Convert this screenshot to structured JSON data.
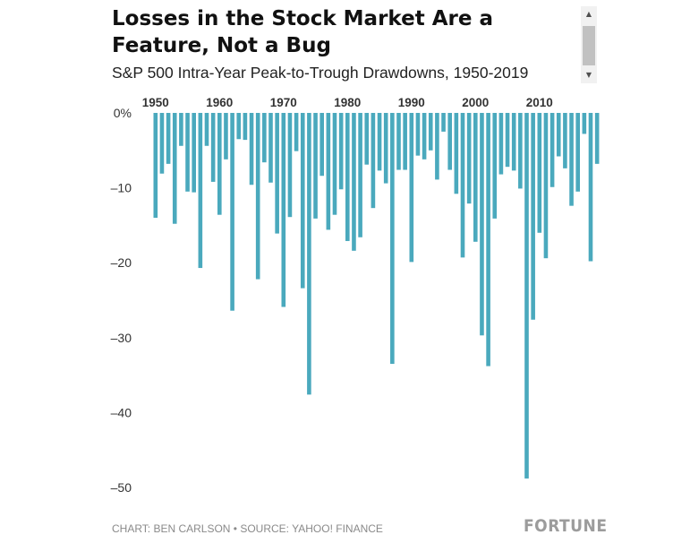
{
  "header": {
    "title": "Losses in the Stock Market Are a Feature, Not a Bug",
    "subtitle": "S&P 500 Intra-Year Peak-to-Trough Drawdowns, 1950-2019"
  },
  "footer": {
    "source": "CHART: BEN CARLSON • SOURCE: YAHOO! FINANCE",
    "logo": "FORTUNE"
  },
  "scrollbar": {
    "up_arrow": "▲",
    "down_arrow": "▼"
  },
  "colors": {
    "bar": "#4aa9bd",
    "axis_text": "#333333",
    "footer_text": "#8a8a8a"
  },
  "chart_data": {
    "type": "bar",
    "title": "S&P 500 Intra-Year Peak-to-Trough Drawdowns, 1950-2019",
    "xlabel": "",
    "ylabel": "",
    "x_tick_labels": [
      "1950",
      "1960",
      "1970",
      "1980",
      "1990",
      "2000",
      "2010"
    ],
    "x_tick_years": [
      1950,
      1960,
      1970,
      1980,
      1990,
      2000,
      2010
    ],
    "y_ticks": [
      0,
      -10,
      -20,
      -30,
      -40,
      -50
    ],
    "y_tick_labels": [
      "0%",
      "–10",
      "–20",
      "–30",
      "–40",
      "–50"
    ],
    "ylim": [
      -50,
      0
    ],
    "grid": false,
    "categories": [
      1950,
      1951,
      1952,
      1953,
      1954,
      1955,
      1956,
      1957,
      1958,
      1959,
      1960,
      1961,
      1962,
      1963,
      1964,
      1965,
      1966,
      1967,
      1968,
      1969,
      1970,
      1971,
      1972,
      1973,
      1974,
      1975,
      1976,
      1977,
      1978,
      1979,
      1980,
      1981,
      1982,
      1983,
      1984,
      1985,
      1986,
      1987,
      1988,
      1989,
      1990,
      1991,
      1992,
      1993,
      1994,
      1995,
      1996,
      1997,
      1998,
      1999,
      2000,
      2001,
      2002,
      2003,
      2004,
      2005,
      2006,
      2007,
      2008,
      2009,
      2010,
      2011,
      2012,
      2013,
      2014,
      2015,
      2016,
      2017,
      2018,
      2019
    ],
    "values": [
      -14.0,
      -8.1,
      -6.8,
      -14.8,
      -4.4,
      -10.5,
      -10.6,
      -20.7,
      -4.4,
      -9.2,
      -13.6,
      -6.2,
      -26.4,
      -3.5,
      -3.6,
      -9.6,
      -22.2,
      -6.6,
      -9.3,
      -16.1,
      -25.9,
      -13.9,
      -5.1,
      -23.4,
      -37.6,
      -14.1,
      -8.4,
      -15.6,
      -13.6,
      -10.2,
      -17.1,
      -18.4,
      -16.6,
      -6.9,
      -12.7,
      -7.7,
      -9.4,
      -33.5,
      -7.6,
      -7.6,
      -19.9,
      -5.7,
      -6.2,
      -5.0,
      -8.9,
      -2.5,
      -7.6,
      -10.8,
      -19.3,
      -12.1,
      -17.2,
      -29.7,
      -33.8,
      -14.1,
      -8.2,
      -7.2,
      -7.7,
      -10.1,
      -48.8,
      -27.6,
      -16.0,
      -19.4,
      -9.9,
      -5.8,
      -7.4,
      -12.4,
      -10.5,
      -2.8,
      -19.8,
      -6.8
    ]
  }
}
